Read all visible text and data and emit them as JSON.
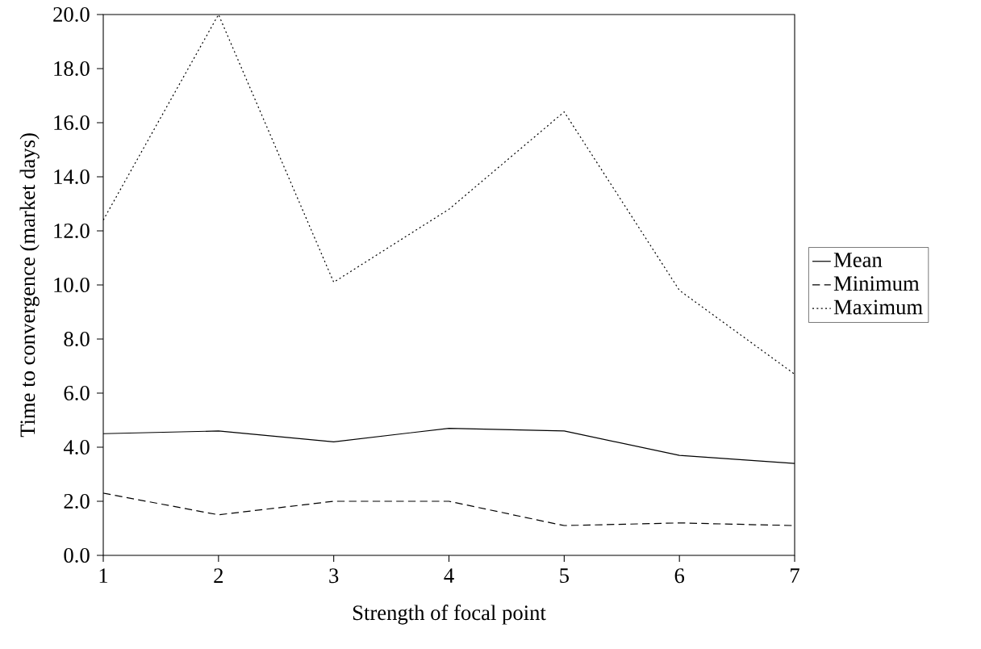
{
  "chart_data": {
    "type": "line",
    "xlabel": "Strength of focal point",
    "ylabel": "Time to convergence (market days)",
    "x": [
      1,
      2,
      3,
      4,
      5,
      6,
      7
    ],
    "series": [
      {
        "name": "Mean",
        "color": "#000000",
        "line_style": "solid",
        "values": [
          4.5,
          4.6,
          4.2,
          4.7,
          4.6,
          3.7,
          3.4
        ]
      },
      {
        "name": "Minimum",
        "color": "#000000",
        "line_style": "dashed",
        "values": [
          2.3,
          1.5,
          2.0,
          2.0,
          1.1,
          1.2,
          1.1
        ]
      },
      {
        "name": "Maximum",
        "color": "#000000",
        "line_style": "dotted",
        "values": [
          12.4,
          20.0,
          10.1,
          12.8,
          16.4,
          9.8,
          6.7
        ]
      }
    ],
    "xlim": [
      1,
      7
    ],
    "xticks": [
      1,
      2,
      3,
      4,
      5,
      6,
      7
    ],
    "ylim": [
      0,
      20
    ],
    "yticks": [
      {
        "value": 0,
        "label": "0.0"
      },
      {
        "value": 2,
        "label": "2.0"
      },
      {
        "value": 4,
        "label": "4.0"
      },
      {
        "value": 6,
        "label": "6.0"
      },
      {
        "value": 8,
        "label": "8.0"
      },
      {
        "value": 10,
        "label": "10.0"
      },
      {
        "value": 12,
        "label": "12.0"
      },
      {
        "value": 14,
        "label": "14.0"
      },
      {
        "value": 16,
        "label": "16.0"
      },
      {
        "value": 18,
        "label": "18.0"
      },
      {
        "value": 20,
        "label": "20.0"
      }
    ],
    "legend": "right",
    "grid": false,
    "marker": "none"
  }
}
